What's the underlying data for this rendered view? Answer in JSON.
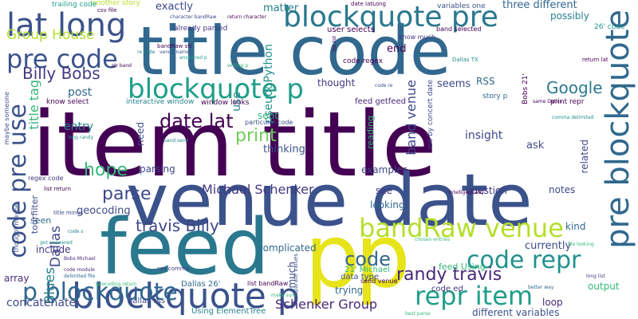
{
  "words": [
    {
      "text": "item title",
      "color": "#440154"
    },
    {
      "text": "venue date",
      "color": "#3b528b"
    },
    {
      "text": "title code",
      "color": "#31688e"
    },
    {
      "text": "feed",
      "color": "#2a788e"
    },
    {
      "text": "p",
      "color": "#e7e419"
    },
    {
      "text": "p",
      "color": "#e7e419"
    },
    {
      "text": "blockquote p",
      "color": "#3b528b"
    },
    {
      "text": "blockquote pre",
      "color": "#2a788e"
    },
    {
      "text": "pre blockquote",
      "color": "#31688e"
    },
    {
      "text": "bandRaw venue",
      "color": "#b5de2b"
    },
    {
      "text": "code repr",
      "color": "#21918c"
    },
    {
      "text": "repr item",
      "color": "#1f9e89"
    },
    {
      "text": "p blockquote",
      "color": "#31688e"
    },
    {
      "text": "code pre use",
      "color": "#3b528b"
    },
    {
      "text": "lat long",
      "color": "#3b528b"
    },
    {
      "text": "pre code",
      "color": "#3b528b"
    },
    {
      "text": "blockquote p",
      "color": "#1f9e89"
    },
    {
      "text": "title tag",
      "color": "#35b779"
    },
    {
      "text": "Group House",
      "color": "#b5de2b"
    },
    {
      "text": "Billy Bobs",
      "color": "#443983"
    },
    {
      "text": "date lat",
      "color": "#440154"
    },
    {
      "text": "Google",
      "color": "#2a788e"
    },
    {
      "text": "print",
      "color": "#6ece58"
    },
    {
      "text": "hope",
      "color": "#35b779"
    },
    {
      "text": "parse",
      "color": "#3e4989"
    },
    {
      "text": "travis Billy",
      "color": "#3e4989"
    },
    {
      "text": "Michael Schenker",
      "color": "#443983"
    },
    {
      "text": "code",
      "color": "#31688e"
    },
    {
      "text": "randy travis",
      "color": "#482878"
    },
    {
      "text": "Schenker Group",
      "color": "#482878"
    },
    {
      "text": "band venue",
      "color": "#3e4989"
    },
    {
      "text": "Blues",
      "color": "#26828e"
    },
    {
      "text": "Dallas",
      "color": "#3e4989"
    },
    {
      "text": "concatenate",
      "color": "#3e4989"
    },
    {
      "text": "pseudoPython",
      "color": "#21918c"
    },
    {
      "text": "exactly",
      "color": "#3e4989"
    },
    {
      "text": "matter",
      "color": "#26828e"
    },
    {
      "text": "three different",
      "color": "#31688e"
    },
    {
      "text": "possibly",
      "color": "#26828e"
    },
    {
      "text": "user selects",
      "color": "#440154"
    },
    {
      "text": "code regex",
      "color": "#440154"
    },
    {
      "text": "end",
      "color": "#440154"
    },
    {
      "text": "RSS",
      "color": "#31688e"
    },
    {
      "text": "thought",
      "color": "#443983"
    },
    {
      "text": "seems",
      "color": "#3e4989"
    },
    {
      "text": "post",
      "color": "#31688e"
    },
    {
      "text": "entry",
      "color": "#26828e"
    },
    {
      "text": "use",
      "color": "#26828e"
    },
    {
      "text": "need",
      "color": "#3e4989"
    },
    {
      "text": "sent",
      "color": "#35b779"
    },
    {
      "text": "thinking",
      "color": "#3b528b"
    },
    {
      "text": "reading",
      "color": "#35b779"
    },
    {
      "text": "insight",
      "color": "#3e4989"
    },
    {
      "text": "related",
      "color": "#3e4989"
    },
    {
      "text": "ask",
      "color": "#3e4989"
    },
    {
      "text": "parsing",
      "color": "#3e4989"
    },
    {
      "text": "examples",
      "color": "#3e4989"
    },
    {
      "text": "question",
      "color": "#443983"
    },
    {
      "text": "notes",
      "color": "#3e4989"
    },
    {
      "text": "see",
      "color": "#443983"
    },
    {
      "text": "looking",
      "color": "#31688e"
    },
    {
      "text": "kind",
      "color": "#31688e"
    },
    {
      "text": "currently",
      "color": "#3e4989"
    },
    {
      "text": "geocoding",
      "color": "#3e4989"
    },
    {
      "text": "include",
      "color": "#443983"
    },
    {
      "text": "complicated",
      "color": "#31688e"
    },
    {
      "text": "much",
      "color": "#3e4989"
    },
    {
      "text": "trying",
      "color": "#31688e"
    },
    {
      "text": "loop",
      "color": "#482878"
    },
    {
      "text": "output",
      "color": "#35b779"
    },
    {
      "text": "different variables",
      "color": "#3b528b"
    },
    {
      "text": "array",
      "color": "#482878"
    },
    {
      "text": "seen",
      "color": "#31688e"
    },
    {
      "text": "tourfilter",
      "color": "#3e4989"
    },
    {
      "text": "feed Using",
      "color": "#35b779"
    },
    {
      "text": "21' Michael",
      "color": "#35b779"
    },
    {
      "text": "code ed",
      "color": "#443983"
    },
    {
      "text": "Dallas 26'",
      "color": "#31688e"
    },
    {
      "text": "dallas rss",
      "color": "#3e4989"
    },
    {
      "text": "Using ElementTree",
      "color": "#26828e"
    },
    {
      "text": "data type",
      "color": "#3b528b"
    },
    {
      "text": "send venue",
      "color": "#440154"
    },
    {
      "text": "list bandRaw",
      "color": "#440154"
    },
    {
      "text": "feed getfeed",
      "color": "#482878"
    },
    {
      "text": "print repr",
      "color": "#440154"
    },
    {
      "text": "story p",
      "color": "#31688e"
    },
    {
      "text": "know select",
      "color": "#440154"
    },
    {
      "text": "interactive window",
      "color": "#26828e"
    },
    {
      "text": "window looks",
      "color": "#440154"
    },
    {
      "text": "particular code",
      "color": "#3b528b"
    },
    {
      "text": "already parsed",
      "color": "#443983"
    },
    {
      "text": "another story",
      "color": "#b5de2b"
    },
    {
      "text": "trailing code",
      "color": "#1f9e89"
    },
    {
      "text": "variables one",
      "color": "#3b528b"
    },
    {
      "text": "date latLong",
      "color": "#440154"
    },
    {
      "text": "band selected",
      "color": "#440154"
    },
    {
      "text": "know much",
      "color": "#443983"
    },
    {
      "text": "26' code",
      "color": "#21918c"
    },
    {
      "text": "return lat",
      "color": "#440154"
    },
    {
      "text": "Dallas TX",
      "color": "#21918c"
    },
    {
      "text": "list list",
      "color": "#440154"
    },
    {
      "text": "character bandRaw",
      "color": "#3e4989"
    },
    {
      "text": "return character",
      "color": "#440154"
    },
    {
      "text": "csv file",
      "color": "#440154"
    },
    {
      "text": "csv comma",
      "color": "#443983"
    },
    {
      "text": "regex code",
      "color": "#443983"
    },
    {
      "text": "list return",
      "color": "#440154"
    },
    {
      "text": "title minus",
      "color": "#3e4989"
    },
    {
      "text": "long randy",
      "color": "#21918c"
    },
    {
      "text": "band send",
      "color": "#26828e"
    },
    {
      "text": "maybe someone",
      "color": "#3b528b"
    },
    {
      "text": "thought maybe",
      "color": "#3b528b"
    },
    {
      "text": "got answered",
      "color": "#21918c"
    },
    {
      "text": "code s",
      "color": "#26828e"
    },
    {
      "text": "Bobs Michael",
      "color": "#482878"
    },
    {
      "text": "code module",
      "color": "#482878"
    },
    {
      "text": "delimited file",
      "color": "#31688e"
    },
    {
      "text": "geocoding return",
      "color": "#35b779"
    },
    {
      "text": "make sure",
      "color": "#35b779"
    },
    {
      "text": "chosen entries",
      "color": "#35b779"
    },
    {
      "text": "intelligent way",
      "color": "#440154"
    },
    {
      "text": "file looking",
      "color": "#35b779"
    },
    {
      "text": "better way",
      "color": "#31688e"
    },
    {
      "text": "long list",
      "color": "#443983"
    },
    {
      "text": "best parse",
      "color": "#35b779"
    },
    {
      "text": "rss by concert date",
      "color": "#3e4989"
    },
    {
      "text": "separate values",
      "color": "#3b528b"
    },
    {
      "text": "Bobs 21'",
      "color": "#440154"
    },
    {
      "text": "same Dallas",
      "color": "#440154"
    },
    {
      "text": "comma delimited",
      "color": "#21918c"
    },
    {
      "text": "writing p",
      "color": "#35b779"
    },
    {
      "text": "code re",
      "color": "#3e4989"
    },
    {
      "text": "re code",
      "color": "#26828e"
    },
    {
      "text": "str band",
      "color": "#440154"
    },
    {
      "text": "bandRaw str",
      "color": "#440154"
    },
    {
      "text": "venue name",
      "color": "#3b528b"
    },
    {
      "text": "answered p",
      "color": "#1f9e89"
    }
  ]
}
